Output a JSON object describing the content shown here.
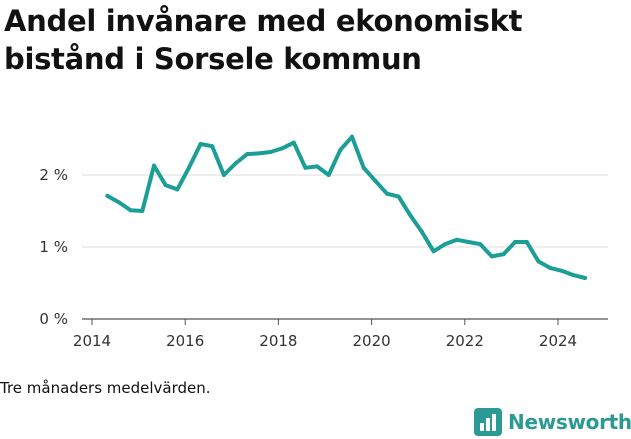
{
  "title": "Andel invånare med ekonomiskt bistånd i Sorsele kommun",
  "caption": "Tre månaders medelvärden.",
  "brand": {
    "name": "Newsworthy",
    "icon": "bar-chart-logo-icon",
    "color": "#2c9a94"
  },
  "chart_data": {
    "type": "line",
    "title": "Andel invånare med ekonomiskt bistånd i Sorsele kommun",
    "xlabel": "",
    "ylabel": "",
    "xlim": [
      2014,
      2025.1
    ],
    "ylim": [
      0,
      2.8
    ],
    "grid": true,
    "x_ticks": [
      2014,
      2016,
      2018,
      2020,
      2022,
      2024
    ],
    "x_tick_labels": [
      "2014",
      "2016",
      "2018",
      "2020",
      "2022",
      "2024"
    ],
    "y_ticks": [
      0,
      1,
      2
    ],
    "y_tick_labels": [
      "0 %",
      "1 %",
      "2 %"
    ],
    "line_color": "#1a9e96",
    "series": [
      {
        "name": "",
        "x": [
          2014.33,
          2014.58,
          2014.83,
          2015.08,
          2015.33,
          2015.58,
          2015.83,
          2016.08,
          2016.33,
          2016.58,
          2016.83,
          2017.08,
          2017.33,
          2017.58,
          2017.83,
          2018.08,
          2018.33,
          2018.58,
          2018.83,
          2019.08,
          2019.33,
          2019.58,
          2019.83,
          2020.08,
          2020.33,
          2020.58,
          2020.83,
          2021.08,
          2021.33,
          2021.58,
          2021.83,
          2022.08,
          2022.33,
          2022.58,
          2022.83,
          2023.08,
          2023.33,
          2023.58,
          2023.83,
          2024.08,
          2024.33,
          2024.58
        ],
        "values": [
          1.71,
          1.62,
          1.51,
          1.5,
          2.13,
          1.86,
          1.8,
          2.1,
          2.43,
          2.4,
          2.0,
          2.16,
          2.29,
          2.3,
          2.32,
          2.37,
          2.45,
          2.1,
          2.12,
          2.0,
          2.35,
          2.53,
          2.1,
          1.92,
          1.74,
          1.7,
          1.44,
          1.21,
          0.94,
          1.04,
          1.1,
          1.07,
          1.04,
          0.87,
          0.9,
          1.07,
          1.07,
          0.8,
          0.71,
          0.67,
          0.61,
          0.57
        ]
      }
    ]
  }
}
